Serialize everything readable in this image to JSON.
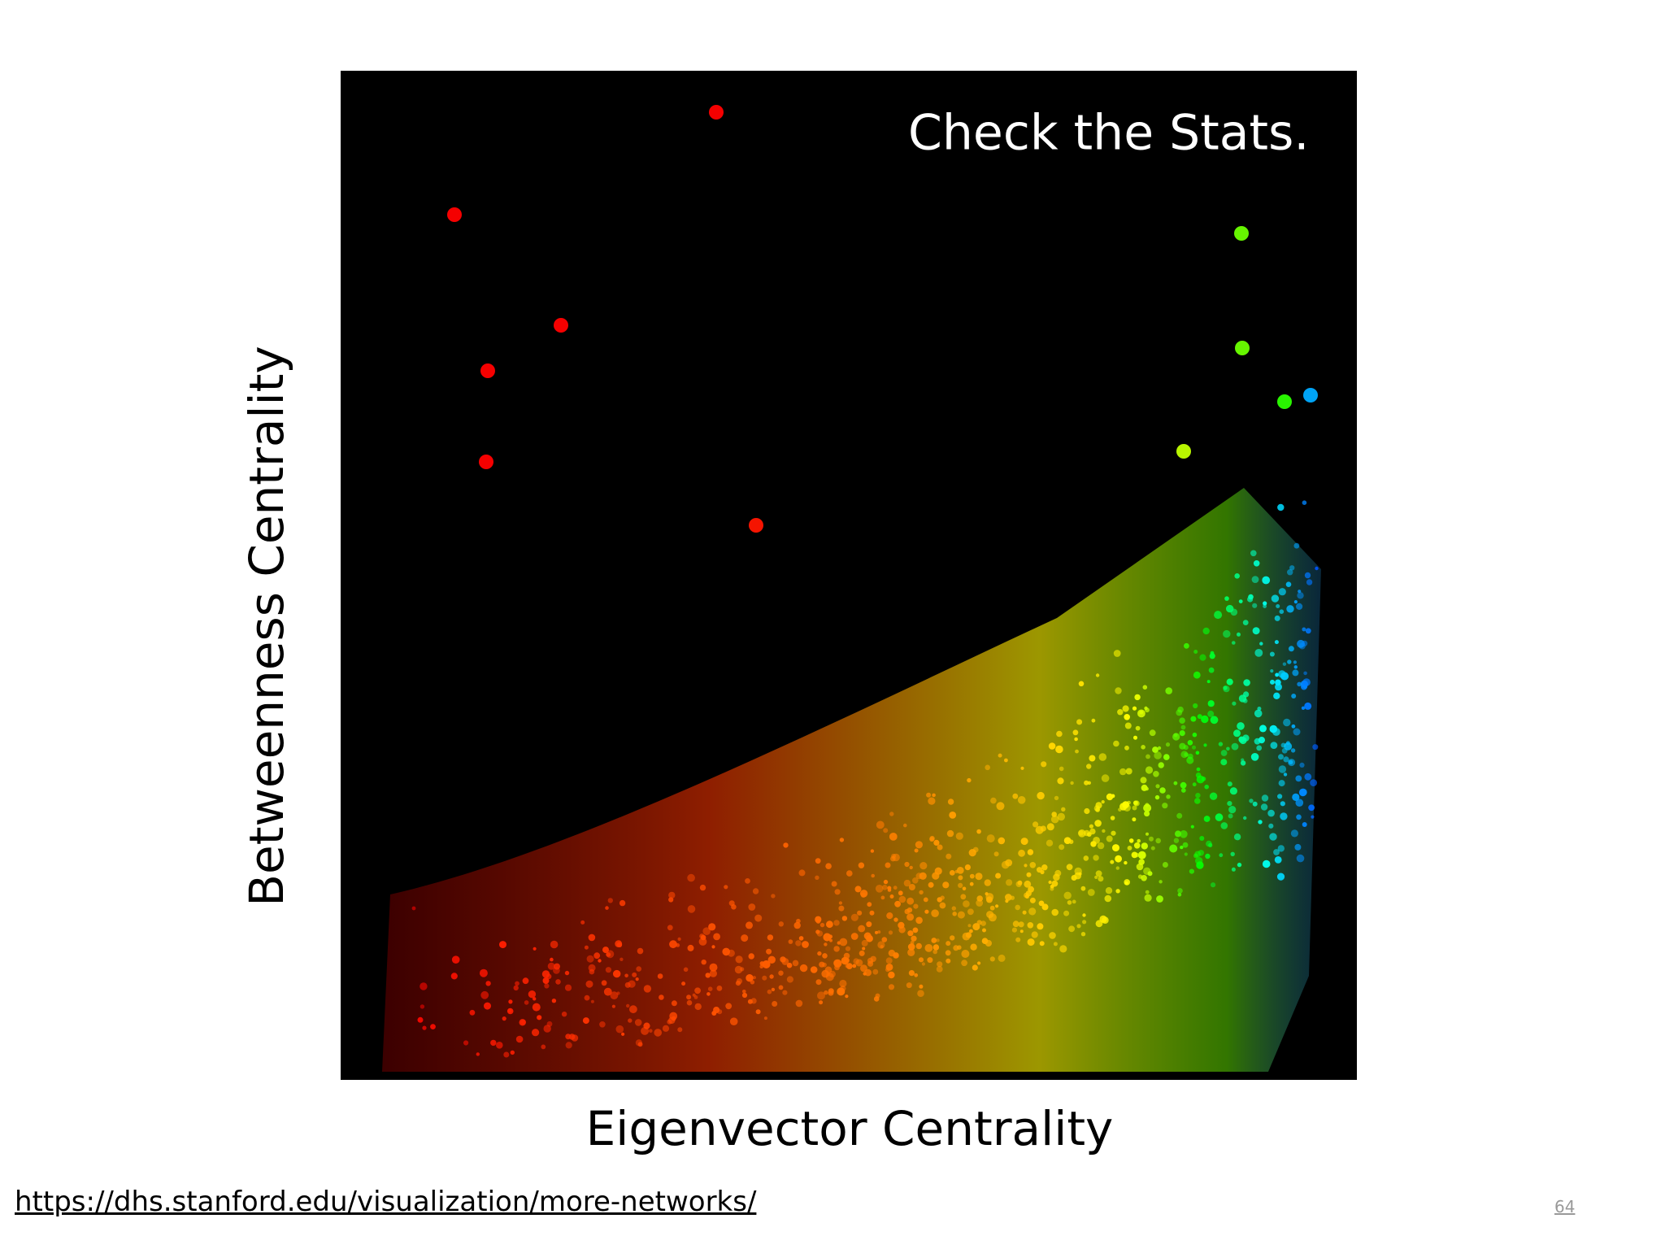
{
  "slide": {
    "image_caption": "Check the Stats.",
    "y_axis_label": "Betweenness Centrality",
    "x_axis_label": "Eigenvector Centrality"
  },
  "footer": {
    "link": "https://dhs.stanford.edu/visualization/more-networks/",
    "page_number": "64"
  }
}
